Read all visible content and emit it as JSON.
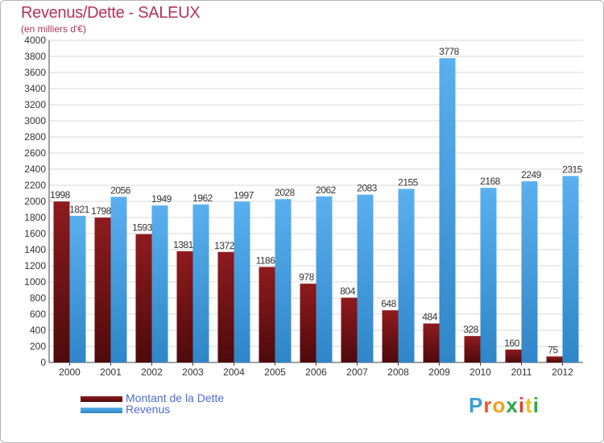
{
  "header": {
    "title": "Revenus/Dette - SALEUX",
    "subtitle": "(en milliers d'€)"
  },
  "logo": {
    "text": "Proxiti",
    "letter_colors": [
      "#3aa0d8",
      "#e65a2a",
      "#f0a020",
      "#2aa84a",
      "#e63a3a",
      "#f0c020",
      "#2aa84a"
    ]
  },
  "colors": {
    "dette": "#7a1416",
    "revenus": "#4aa2e6",
    "text": "#333333",
    "grid": "#d9d9d9",
    "title": "#b0335a",
    "legend_text": "#4f6ccf"
  },
  "legend": [
    {
      "label": "Montant de la Dette",
      "color": "#7a1416"
    },
    {
      "label": "Revenus",
      "color": "#4aa2e6"
    }
  ],
  "chart_data": {
    "type": "bar",
    "categories": [
      "2000",
      "2001",
      "2002",
      "2003",
      "2004",
      "2005",
      "2006",
      "2007",
      "2008",
      "2009",
      "2010",
      "2011",
      "2012"
    ],
    "series": [
      {
        "name": "Montant de la Dette",
        "values": [
          1998,
          1798,
          1593,
          1381,
          1372,
          1186,
          978,
          804,
          648,
          484,
          328,
          160,
          75
        ]
      },
      {
        "name": "Revenus",
        "values": [
          1821,
          2056,
          1949,
          1962,
          1997,
          2028,
          2062,
          2083,
          2155,
          3778,
          2168,
          2249,
          2315
        ]
      }
    ],
    "ylim": [
      0,
      4000
    ],
    "yticks": [
      0,
      200,
      400,
      600,
      800,
      1000,
      1200,
      1400,
      1600,
      1800,
      2000,
      2200,
      2400,
      2600,
      2800,
      3000,
      3200,
      3400,
      3600,
      3800,
      4000
    ],
    "grid": true,
    "legend_position": "bottom-left"
  }
}
